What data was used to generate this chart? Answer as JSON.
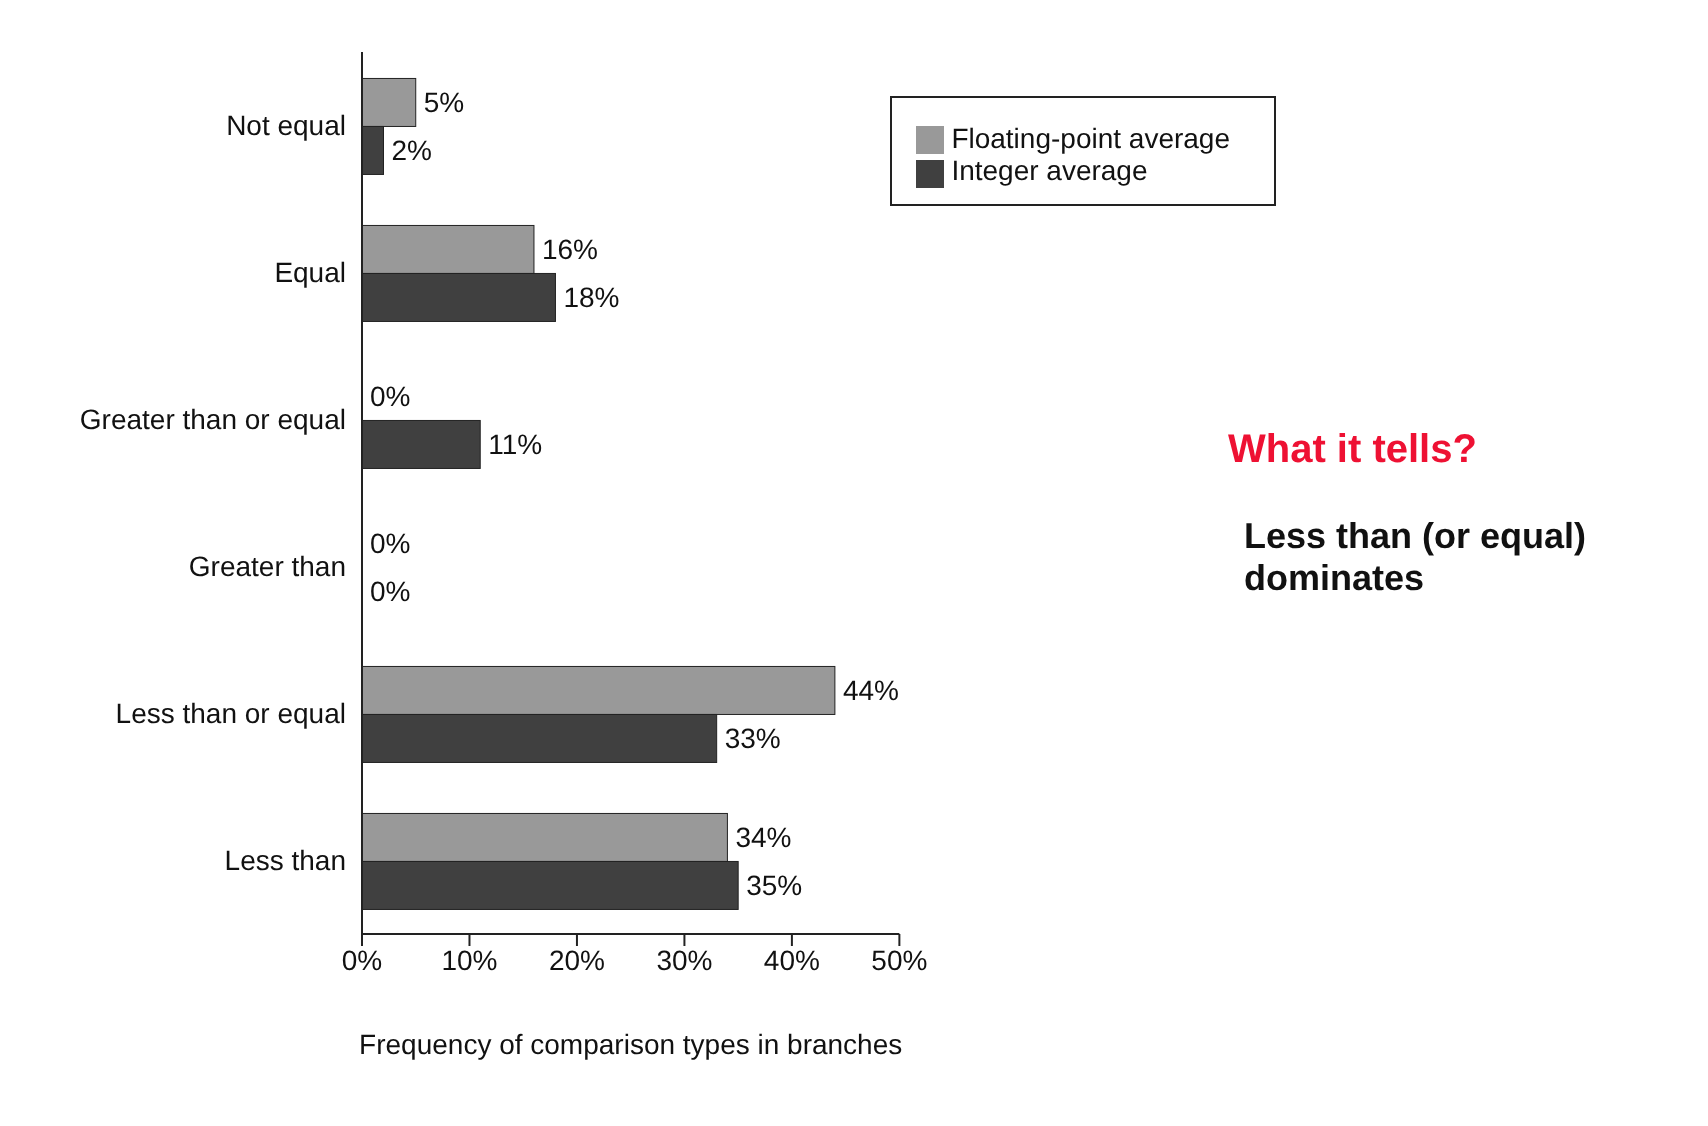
{
  "chart_data": {
    "type": "bar",
    "orientation": "horizontal",
    "categories": [
      "Not equal",
      "Equal",
      "Greater than or equal",
      "Greater than",
      "Less than or equal",
      "Less than"
    ],
    "series": [
      {
        "name": "Floating-point average",
        "color": "#999999",
        "values": [
          5,
          16,
          0,
          0,
          44,
          34
        ],
        "value_labels": [
          "5%",
          "16%",
          "0%",
          "0%",
          "44%",
          "34%"
        ]
      },
      {
        "name": "Integer average",
        "color": "#404040",
        "values": [
          2,
          18,
          11,
          0,
          33,
          35
        ],
        "value_labels": [
          "2%",
          "18%",
          "11%",
          "0%",
          "33%",
          "35%"
        ]
      }
    ],
    "xlim": [
      0,
      50
    ],
    "xticks": [
      {
        "value": 0,
        "label": "0%"
      },
      {
        "value": 10,
        "label": "10%"
      },
      {
        "value": 20,
        "label": "20%"
      },
      {
        "value": 30,
        "label": "30%"
      },
      {
        "value": 40,
        "label": "40%"
      },
      {
        "value": 50,
        "label": "50%"
      }
    ],
    "xlabel": "Frequency of comparison types in branches",
    "legend": "top right",
    "grid": false,
    "annotations": [
      "What it tells?",
      "Less than (or equal) dominates"
    ]
  }
}
